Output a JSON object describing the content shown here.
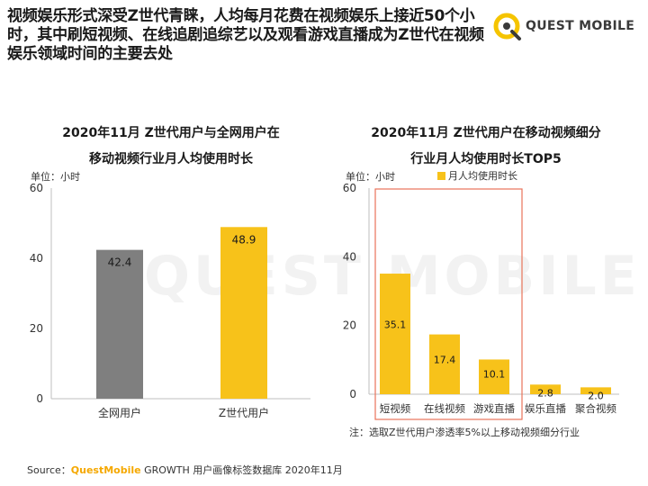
{
  "headline": "视频娱乐形式深受Z世代青睐，人均每月花费在视频娱乐上接近50个小时，其中刷短视频、在线追剧追综艺以及观看游戏直播成为Z世代在视频娱乐领域时间的主要去处",
  "logo_text": "QUEST MOBILE",
  "watermark": "QUEST MOBILE",
  "colors": {
    "bar_gray": "#7f7f7f",
    "bar_yellow": "#f7c21a",
    "highlight_box": "#e8735a",
    "logo_yellow": "#f5c400"
  },
  "note": "注：选取Z世代用户渗透率5%以上移动视频细分行业",
  "source": {
    "prefix": "Source：",
    "brand": "QuestMobile",
    "rest": " GROWTH 用户画像标签数据库 2020年11月"
  },
  "chart_data": [
    {
      "type": "bar",
      "title_line1": "2020年11月 Z世代用户与全网用户在",
      "title_line2": "移动视频行业月人均使用时长",
      "unit": "单位：小时",
      "categories": [
        "全网用户",
        "Z世代用户"
      ],
      "values": [
        42.4,
        48.9
      ],
      "value_labels": [
        "42.4",
        "48.9"
      ],
      "colors": [
        "gray",
        "yellow"
      ],
      "ylim": [
        0,
        60
      ],
      "yticks": [
        "0",
        "20",
        "40",
        "60"
      ],
      "grid": false
    },
    {
      "type": "bar",
      "title_line1": "2020年11月 Z世代用户在移动视频细分",
      "title_line2": "行业月人均使用时长TOP5",
      "unit": "单位：小时",
      "legend": "月人均使用时长",
      "categories": [
        "短视频",
        "在线视频",
        "游戏直播",
        "娱乐直播",
        "聚合视频"
      ],
      "values": [
        35.1,
        17.4,
        10.1,
        2.8,
        2.0
      ],
      "value_labels": [
        "35.1",
        "17.4",
        "10.1",
        "2.8",
        "2.0"
      ],
      "highlight": [
        "短视频",
        "在线视频",
        "游戏直播"
      ],
      "ylim": [
        0,
        60
      ],
      "yticks": [
        "0",
        "20",
        "40",
        "60"
      ],
      "grid": false
    }
  ]
}
